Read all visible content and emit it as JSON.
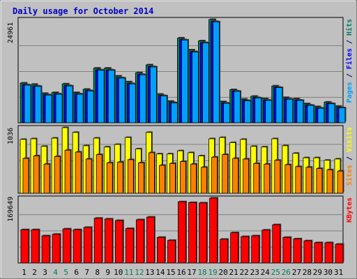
{
  "chart_data": {
    "type": "bar",
    "title": "Daily usage for October 2014",
    "categories": [
      "1",
      "2",
      "3",
      "4",
      "5",
      "6",
      "7",
      "8",
      "9",
      "10",
      "11",
      "12",
      "13",
      "14",
      "15",
      "16",
      "17",
      "18",
      "19",
      "20",
      "21",
      "22",
      "23",
      "24",
      "25",
      "26",
      "27",
      "28",
      "29",
      "30",
      "31"
    ],
    "weekend_days": [
      "4",
      "5",
      "11",
      "12",
      "18",
      "19",
      "25",
      "26"
    ],
    "panels": [
      {
        "id": "top",
        "max_label": "24961",
        "ylim": [
          0,
          24961
        ],
        "legend": [
          {
            "text": "Pages",
            "color": "#00a0ff"
          },
          {
            "text": " / ",
            "color": "#000080"
          },
          {
            "text": "Files",
            "color": "#0000ff"
          },
          {
            "text": " / ",
            "color": "#000080"
          },
          {
            "text": "Hits",
            "color": "#00805c"
          }
        ],
        "series": [
          {
            "name": "Hits",
            "color": "#00805c",
            "values": [
              9600,
              9300,
              7100,
              7300,
              9400,
              7300,
              8100,
              13200,
              13200,
              11300,
              9900,
              12100,
              14000,
              6900,
              5200,
              20500,
              17600,
              19800,
              24961,
              5100,
              8000,
              5700,
              6400,
              5800,
              8900,
              6100,
              5800,
              4600,
              3900,
              5000,
              4000
            ]
          },
          {
            "name": "Files",
            "color": "#0000ff",
            "values": [
              9200,
              8900,
              6800,
              7000,
              9000,
              7000,
              7800,
              12800,
              12800,
              10900,
              9500,
              11700,
              13600,
              6600,
              4900,
              20100,
              17200,
              19400,
              24500,
              4800,
              7700,
              5400,
              6100,
              5500,
              8600,
              5800,
              5500,
              4300,
              3600,
              4700,
              3700
            ]
          },
          {
            "name": "Pages",
            "color": "#00a0ff",
            "values": [
              9100,
              8800,
              6700,
              6900,
              8900,
              6900,
              7700,
              12700,
              12700,
              10800,
              9400,
              11600,
              13500,
              6500,
              4800,
              20000,
              17100,
              19300,
              24400,
              4700,
              7600,
              5300,
              6000,
              5400,
              8500,
              5700,
              5400,
              4200,
              3500,
              4600,
              3600
            ]
          }
        ]
      },
      {
        "id": "mid",
        "max_label": "1036",
        "ylim": [
          0,
          1036
        ],
        "legend": [
          {
            "text": "Sites",
            "color": "#ff8000"
          },
          {
            "text": " / ",
            "color": "#000080"
          },
          {
            "text": "Visits",
            "color": "#ffff00"
          }
        ],
        "series": [
          {
            "name": "Visits",
            "color": "#ffff00",
            "values": [
              850,
              860,
              740,
              870,
              1036,
              960,
              750,
              870,
              730,
              770,
              880,
              700,
              960,
              620,
              620,
              670,
              640,
              590,
              860,
              880,
              800,
              850,
              740,
              730,
              860,
              750,
              630,
              560,
              560,
              520,
              540
            ]
          },
          {
            "name": "Sites",
            "color": "#ff8000",
            "values": [
              550,
              590,
              460,
              580,
              680,
              650,
              540,
              610,
              480,
              490,
              530,
              480,
              640,
              440,
              470,
              500,
              460,
              410,
              570,
              610,
              550,
              540,
              470,
              460,
              520,
              450,
              420,
              410,
              390,
              370,
              350
            ]
          }
        ]
      },
      {
        "id": "bot",
        "max_label": "169649",
        "ylim": [
          0,
          169649
        ],
        "legend": [
          {
            "text": "KBytes",
            "color": "#ff0000"
          }
        ],
        "series": [
          {
            "name": "KBytes",
            "color": "#ff0000",
            "values": [
              87000,
              87000,
              71000,
              75000,
              89000,
              87000,
              93000,
              117000,
              115000,
              111000,
              90000,
              113000,
              120000,
              67000,
              59000,
              160000,
              158000,
              157000,
              169649,
              62000,
              79000,
              69000,
              71000,
              86000,
              100000,
              67000,
              63000,
              58000,
              53000,
              53000,
              49000
            ]
          }
        ]
      }
    ]
  }
}
